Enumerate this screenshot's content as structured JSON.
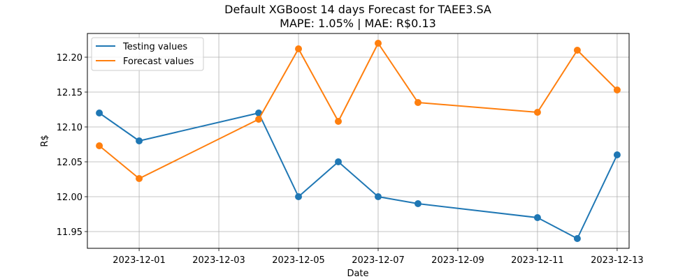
{
  "chart_data": {
    "type": "line",
    "title": "Default XGBoost 14 days Forecast for TAEE3.SA",
    "subtitle": "MAPE: 1.05% | MAE: R$0.13",
    "xlabel": "Date",
    "ylabel": "R$",
    "x": [
      "2023-11-30",
      "2023-12-01",
      "2023-12-04",
      "2023-12-05",
      "2023-12-06",
      "2023-12-07",
      "2023-12-08",
      "2023-12-11",
      "2023-12-12",
      "2023-12-13"
    ],
    "series": [
      {
        "name": "Testing values",
        "color": "#1f77b4",
        "values": [
          12.12,
          12.08,
          12.12,
          12.0,
          12.05,
          12.0,
          11.99,
          11.97,
          11.94,
          12.06
        ]
      },
      {
        "name": "Forecast values",
        "color": "#ff7f0e",
        "values": [
          12.073,
          12.026,
          12.111,
          12.212,
          12.108,
          12.22,
          12.135,
          12.121,
          12.21,
          12.153
        ]
      }
    ],
    "xticks": [
      "2023-12-01",
      "2023-12-03",
      "2023-12-05",
      "2023-12-07",
      "2023-12-09",
      "2023-12-11",
      "2023-12-13"
    ],
    "yticks": [
      "11.95",
      "12.00",
      "12.05",
      "12.10",
      "12.15",
      "12.20"
    ],
    "xlim": [
      "2023-11-29.7",
      "2023-12-13.3"
    ],
    "ylim": [
      11.926,
      12.234
    ],
    "grid": true,
    "legend_position": "top-left"
  }
}
